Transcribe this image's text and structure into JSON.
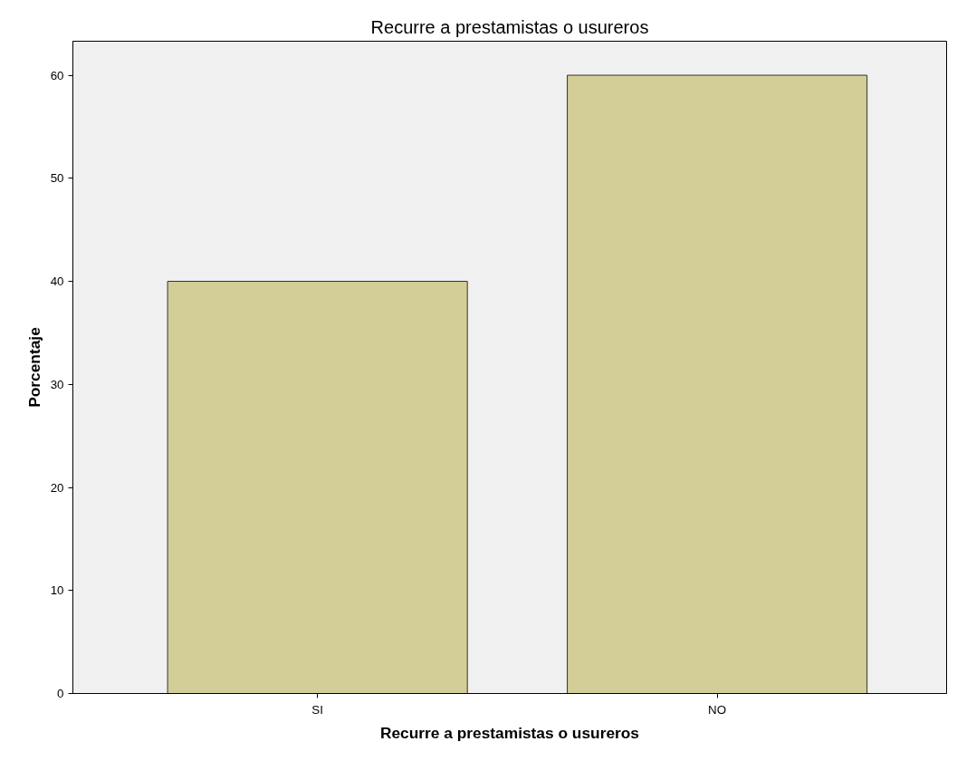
{
  "chart_data": {
    "type": "bar",
    "title": "Recurre a prestamistas o usureros",
    "xlabel": "Recurre a prestamistas o usureros",
    "ylabel": "Porcentaje",
    "categories": [
      "SI",
      "NO"
    ],
    "values": [
      40,
      60
    ],
    "color": "#d3ce97",
    "ylim": [
      0,
      63.3
    ],
    "yticks": [
      0,
      10,
      20,
      30,
      40,
      50,
      60
    ],
    "grid": false
  }
}
